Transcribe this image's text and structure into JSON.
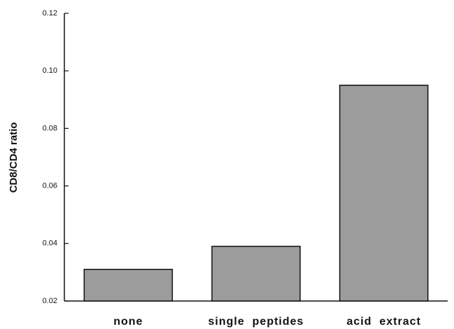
{
  "chart_data": {
    "type": "bar",
    "ylabel": "CD8/CD4  ratio",
    "categories": [
      "none",
      "single  peptides",
      "acid  extract"
    ],
    "values": [
      0.031,
      0.039,
      0.095
    ],
    "color": "#9c9c9c",
    "ylim": [
      0.02,
      0.12
    ],
    "yticks": [
      0.02,
      0.04,
      0.06,
      0.08,
      {
        "value": 0.1,
        "label": "0.10"
      },
      0.12
    ],
    "grid": false
  }
}
